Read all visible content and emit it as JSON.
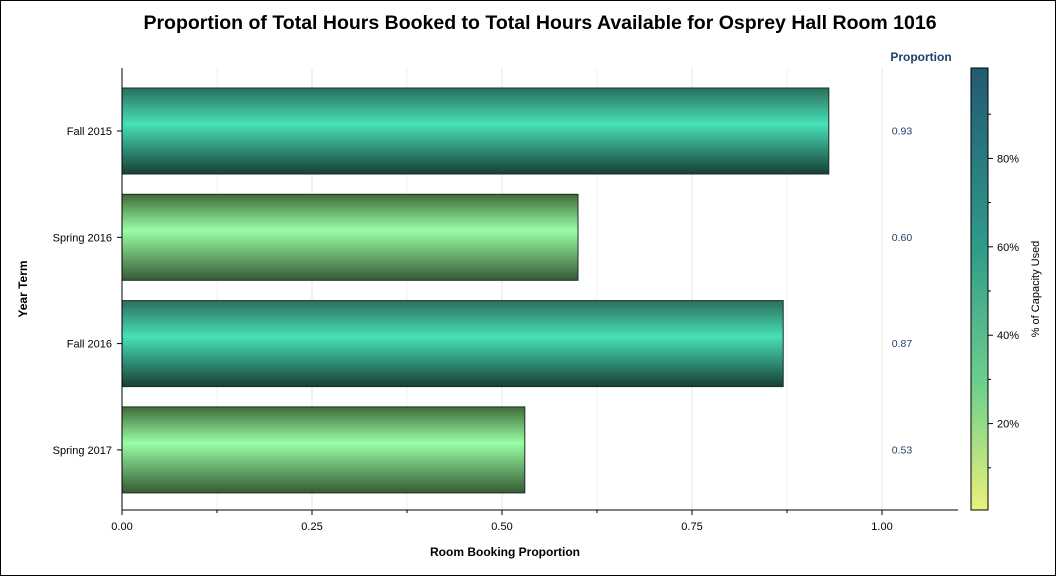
{
  "colors": {
    "high_top": "#2a6f5c",
    "high_mid": "#48e0b8",
    "high_bot": "#173f35",
    "low_top": "#3f6b3a",
    "low_mid": "#99ffa6",
    "low_bot": "#365a33",
    "prop_text": "#1f3f6b",
    "legend_top": "#225a73",
    "legend_mid": "#2f9a8a",
    "legend_low": "#6fd08c",
    "legend_bottom": "#e9f27a"
  },
  "chart_data": {
    "type": "bar",
    "orientation": "horizontal",
    "title": "Proportion of Total Hours Booked to Total Hours Available for Osprey Hall Room 1016",
    "xlabel": "Room Booking Proportion",
    "ylabel": "Year Term",
    "categories": [
      "Fall 2015",
      "Spring 2016",
      "Fall 2016",
      "Spring 2017"
    ],
    "values": [
      0.93,
      0.6,
      0.87,
      0.53
    ],
    "value_labels": [
      "0.93",
      "0.60",
      "0.87",
      "0.53"
    ],
    "xlim": [
      0,
      1.1
    ],
    "xticks": [
      0,
      0.25,
      0.5,
      0.75,
      1
    ],
    "xtick_labels": [
      "0.00",
      "0.25",
      "0.50",
      "0.75",
      "1.00"
    ],
    "grid": "vertical",
    "axis_table_header": "Proportion",
    "colorbar": {
      "title": "% of Capacity Used",
      "range": [
        0,
        100
      ],
      "ticks": [
        20,
        40,
        60,
        80
      ],
      "tick_labels": [
        "20%",
        "40%",
        "60%",
        "80%"
      ]
    }
  }
}
